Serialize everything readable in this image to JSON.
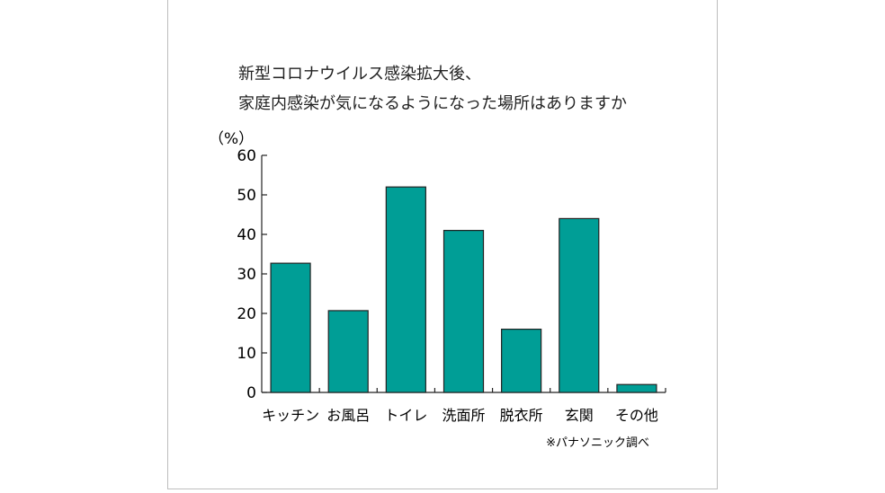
{
  "chart_data": {
    "type": "bar",
    "title_lines": [
      "新型コロナウイルス感染拡大後、",
      "家庭内感染が気になるようになった場所はありますか"
    ],
    "ylabel": "（%）",
    "ylim": [
      0,
      60
    ],
    "yticks": [
      0,
      10,
      20,
      30,
      40,
      50,
      60
    ],
    "categories": [
      "キッチン",
      "お風呂",
      "トイレ",
      "洗面所",
      "脱衣所",
      "玄関",
      "その他"
    ],
    "values": [
      32.7,
      20.7,
      52,
      41,
      16,
      44,
      2
    ],
    "bar_color": "#009e96",
    "grid": false,
    "legend": "none",
    "source": "※パナソニック調べ"
  }
}
